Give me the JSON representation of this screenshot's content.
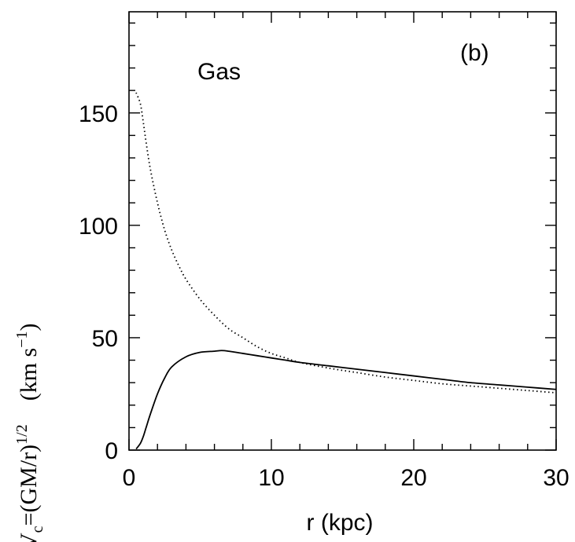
{
  "chart_data": {
    "type": "line",
    "title": "",
    "panel_label": "(b)",
    "annotation": "Gas",
    "xlabel": "r (kpc)",
    "ylabel": {
      "main": "V",
      "sub": "c",
      "eq": "=(GM/r)",
      "sup": "1/2",
      "units": "(km s",
      "units_sup": "−1",
      "units_close": ")"
    },
    "xlim": [
      0,
      30
    ],
    "ylim": [
      0,
      195
    ],
    "xticks": [
      0,
      10,
      20,
      30
    ],
    "xtick_labels": [
      "0",
      "10",
      "20",
      "30"
    ],
    "yticks": [
      0,
      50,
      100,
      150
    ],
    "ytick_labels": [
      "0",
      "50",
      "100",
      "150"
    ],
    "x_minor_step": 2,
    "y_minor_step": 10,
    "grid": false,
    "series": [
      {
        "style": "solid",
        "x": [
          0.5,
          0.8,
          1.0,
          1.2,
          1.5,
          2.0,
          2.5,
          3.0,
          4.0,
          5.0,
          6.0,
          6.5,
          7.0,
          8.0,
          9.0,
          10.0,
          11.0,
          12.0,
          14.0,
          16.0,
          18.0,
          20.0,
          22.0,
          24.0,
          26.0,
          28.0,
          30.0
        ],
        "y": [
          0.5,
          3,
          6,
          10,
          16,
          25,
          32,
          37,
          41.5,
          43.5,
          44,
          44.3,
          44,
          43,
          42,
          41,
          40,
          39,
          37.5,
          36,
          34.5,
          33,
          31.5,
          30,
          29,
          28,
          27
        ]
      },
      {
        "style": "dotted",
        "x": [
          0.5,
          0.8,
          1.0,
          1.2,
          1.5,
          2.0,
          2.5,
          3.0,
          3.5,
          4.0,
          5.0,
          6.0,
          7.0,
          8.0,
          9.0,
          10.0,
          11.0,
          12.0,
          14.0,
          16.0,
          18.0,
          20.0,
          22.0,
          24.0,
          26.0,
          28.0,
          30.0
        ],
        "y": [
          159,
          154,
          146,
          137,
          125,
          110,
          98,
          89,
          82,
          76,
          67,
          60,
          54,
          50,
          46,
          43,
          41,
          39,
          36.5,
          34.5,
          32.5,
          31,
          29.5,
          28.5,
          27.5,
          26.5,
          25.5
        ]
      }
    ]
  }
}
